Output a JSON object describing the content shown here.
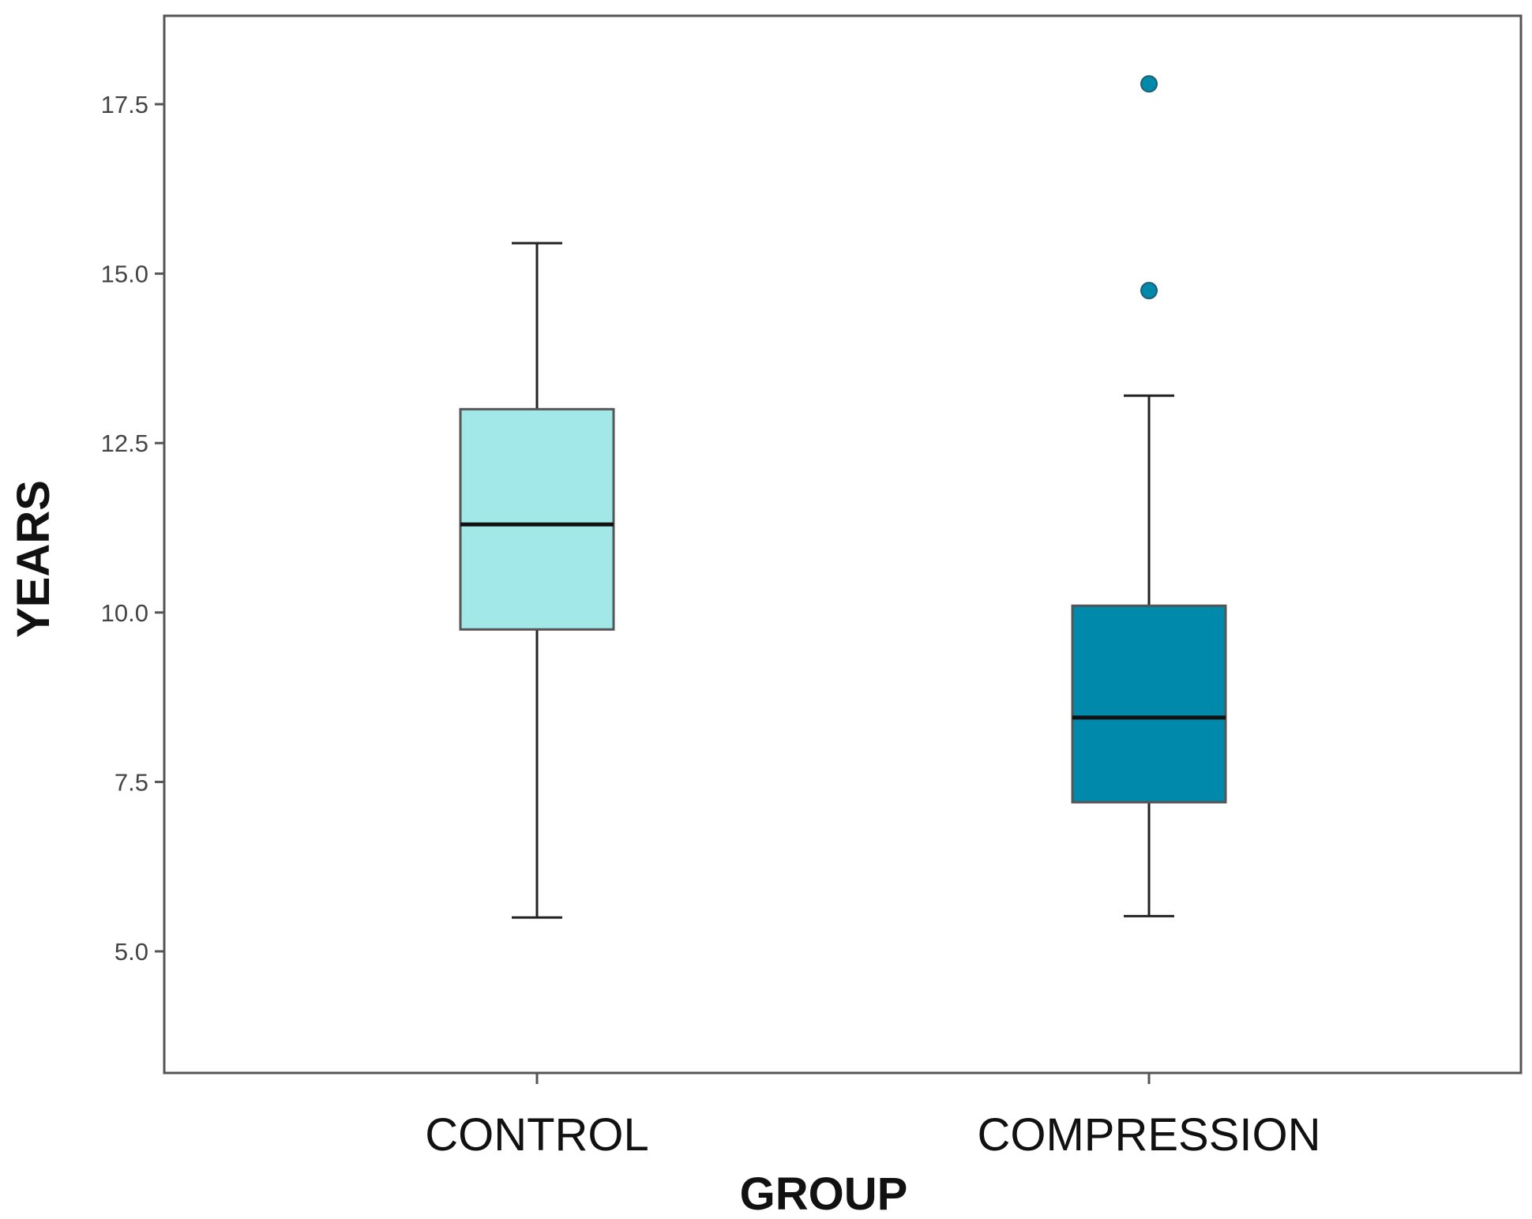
{
  "chart_data": {
    "type": "boxplot",
    "title": "",
    "xlabel": "GROUP",
    "ylabel": "YEARS",
    "ylim": [
      3.6,
      18.7
    ],
    "yticks": [
      {
        "value": 5.0,
        "label": "5.0"
      },
      {
        "value": 7.5,
        "label": "7.5"
      },
      {
        "value": 10.0,
        "label": "10.0"
      },
      {
        "value": 12.5,
        "label": "12.5"
      },
      {
        "value": 15.0,
        "label": "15.0"
      },
      {
        "value": 17.5,
        "label": "17.5"
      }
    ],
    "grid": false,
    "categories": [
      "CONTROL",
      "COMPRESSION"
    ],
    "boxes": [
      {
        "category": "CONTROL",
        "whisker_low": 5.5,
        "q1": 9.75,
        "median": 11.3,
        "q3": 13.0,
        "whisker_high": 15.45,
        "outliers": [],
        "color": "#a3e8e8"
      },
      {
        "category": "COMPRESSION",
        "whisker_low": 5.52,
        "q1": 7.2,
        "median": 8.45,
        "q3": 10.1,
        "whisker_high": 13.2,
        "outliers": [
          14.75,
          17.8
        ],
        "color": "#0089ab"
      }
    ]
  }
}
